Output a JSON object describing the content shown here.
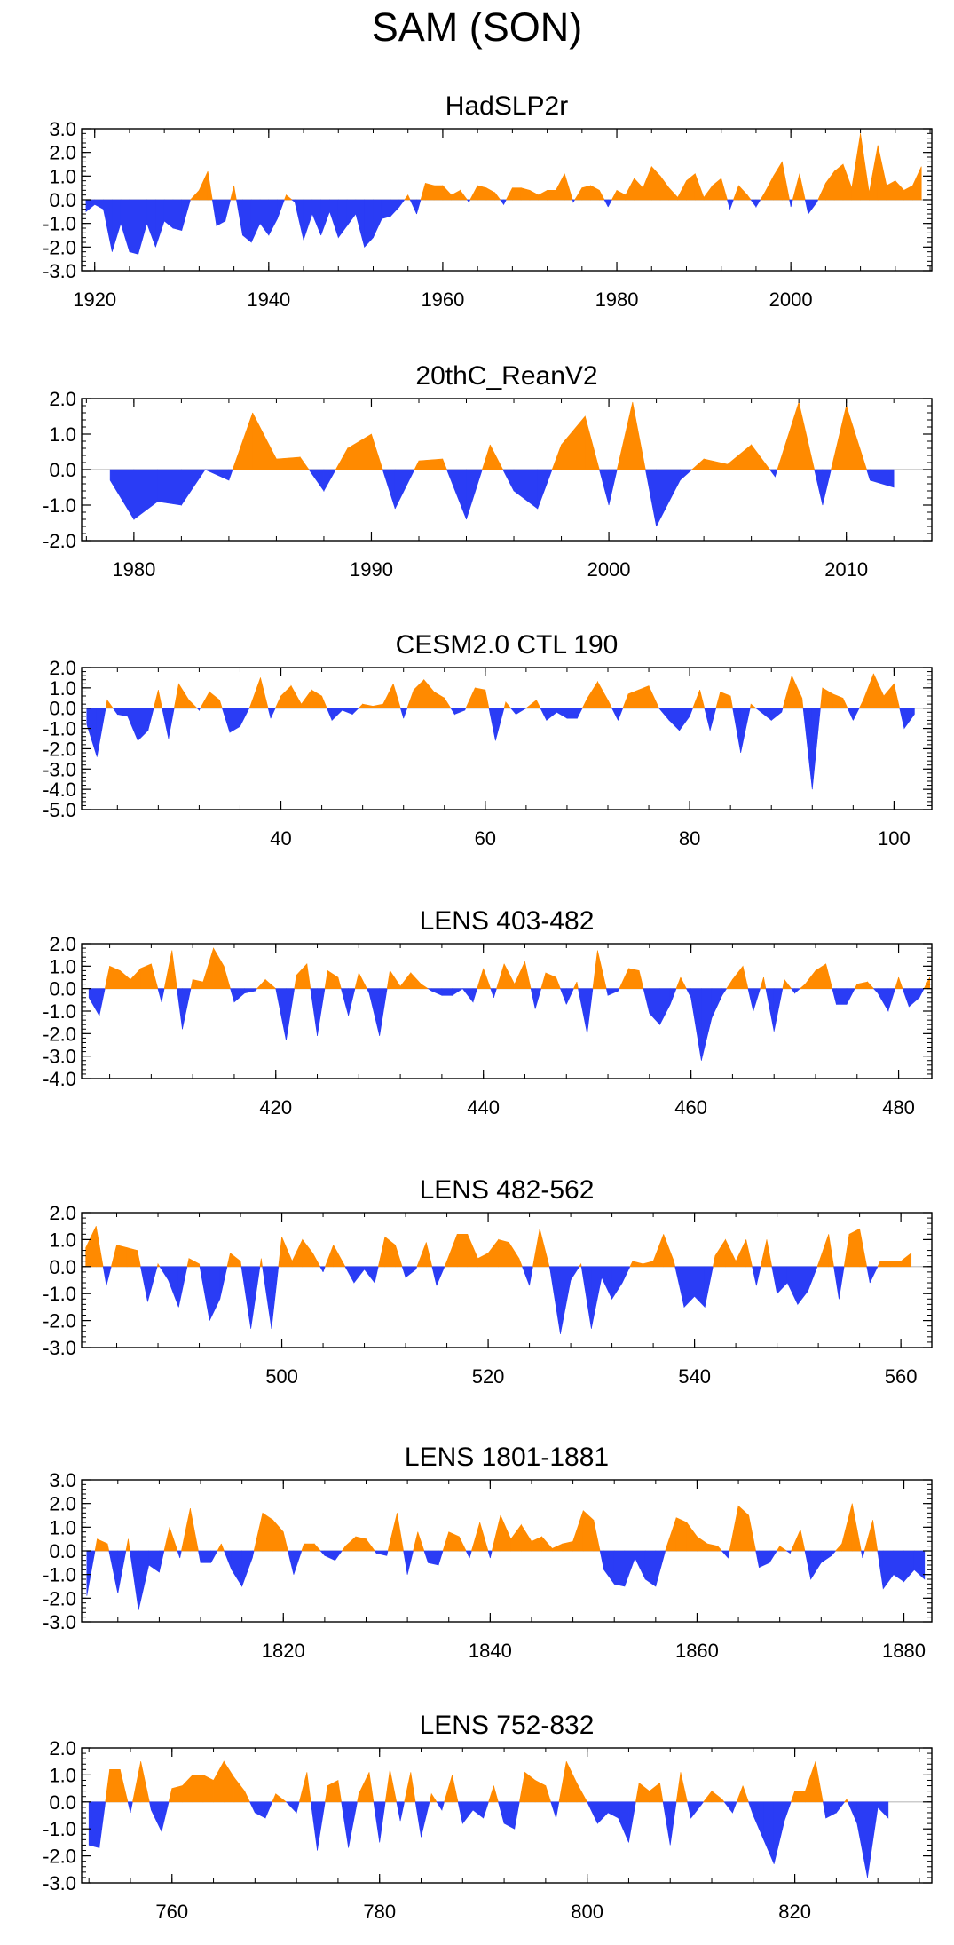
{
  "main_title": "SAM (SON)",
  "colors": {
    "positive": "#ff8a00",
    "negative": "#2a3cf5",
    "axis": "#000000",
    "zero_line": "#bbbbbb"
  },
  "chart_data": [
    {
      "type": "area",
      "title": "HadSLP2r",
      "xlim": [
        1918.5,
        2016.2
      ],
      "ylim": [
        -3.0,
        3.0
      ],
      "yticks": [
        3.0,
        2.0,
        1.0,
        0.0,
        -1.0,
        -2.0,
        -3.0
      ],
      "ytick_labels": [
        "3.0",
        "2.0",
        "1.0",
        "0.0",
        "-1.0",
        "-2.0",
        "-3.0"
      ],
      "xticks": [
        1920,
        1940,
        1960,
        1980,
        2000
      ],
      "xtick_labels": [
        "1920",
        "1940",
        "1960",
        "1980",
        "2000"
      ],
      "x_start": 1919,
      "values": [
        -0.5,
        -0.2,
        -0.4,
        -2.2,
        -1.0,
        -2.2,
        -2.3,
        -1.0,
        -2.0,
        -0.9,
        -1.2,
        -1.3,
        0.0,
        0.4,
        1.2,
        -1.1,
        -0.9,
        0.6,
        -1.5,
        -1.8,
        -1.0,
        -1.5,
        -0.8,
        0.2,
        -0.1,
        -1.7,
        -0.6,
        -1.5,
        -0.5,
        -1.6,
        -1.1,
        -0.6,
        -2.0,
        -1.6,
        -0.8,
        -0.7,
        -0.3,
        0.2,
        -0.6,
        0.7,
        0.6,
        0.6,
        0.2,
        0.4,
        -0.1,
        0.6,
        0.5,
        0.3,
        -0.2,
        0.5,
        0.5,
        0.4,
        0.2,
        0.4,
        0.4,
        1.1,
        -0.1,
        0.5,
        0.6,
        0.4,
        -0.3,
        0.4,
        0.2,
        0.9,
        0.5,
        1.4,
        1.0,
        0.5,
        0.1,
        0.8,
        1.1,
        0.1,
        0.6,
        0.9,
        -0.4,
        0.6,
        0.2,
        -0.3,
        0.3,
        1.0,
        1.6,
        -0.3,
        1.1,
        -0.6,
        -0.1,
        0.7,
        1.2,
        1.5,
        0.5,
        2.8,
        0.3,
        2.3,
        0.6,
        0.8,
        0.4,
        0.6,
        1.4
      ]
    },
    {
      "type": "area",
      "title": "20thC_ReanV2",
      "xlim": [
        1977.8,
        2013.6
      ],
      "ylim": [
        -2.0,
        2.0
      ],
      "yticks": [
        2.0,
        1.0,
        0.0,
        -1.0,
        -2.0
      ],
      "ytick_labels": [
        "2.0",
        "1.0",
        "0.0",
        "-1.0",
        "-2.0"
      ],
      "xticks": [
        1980,
        1990,
        2000,
        2010
      ],
      "xtick_labels": [
        "1980",
        "1990",
        "2000",
        "2010"
      ],
      "x_start": 1979,
      "values": [
        -0.3,
        -1.4,
        -0.9,
        -1.0,
        0.0,
        -0.3,
        1.6,
        0.3,
        0.35,
        -0.6,
        0.6,
        1.0,
        -1.1,
        0.25,
        0.3,
        -1.4,
        0.7,
        -0.6,
        -1.1,
        0.7,
        1.5,
        -1.0,
        1.9,
        -1.6,
        -0.3,
        0.3,
        0.15,
        0.7,
        -0.2,
        1.9,
        -1.0,
        1.8,
        -0.3,
        -0.5
      ]
    },
    {
      "type": "area",
      "title": "CESM2.0 CTL 190",
      "xlim": [
        20.5,
        103.7
      ],
      "ylim": [
        -5.0,
        2.0
      ],
      "yticks": [
        2.0,
        1.0,
        0.0,
        -1.0,
        -2.0,
        -3.0,
        -4.0,
        -5.0
      ],
      "ytick_labels": [
        "2.0",
        "1.0",
        "0.0",
        "-1.0",
        "-2.0",
        "-3.0",
        "-4.0",
        "-5.0"
      ],
      "xticks": [
        40,
        60,
        80,
        100
      ],
      "xtick_labels": [
        "40",
        "60",
        "80",
        "100"
      ],
      "x_start": 21,
      "values": [
        -0.8,
        -2.4,
        0.4,
        -0.3,
        -0.4,
        -1.6,
        -1.1,
        0.9,
        -1.5,
        1.2,
        0.4,
        -0.1,
        0.8,
        0.4,
        -1.2,
        -0.9,
        0.1,
        1.5,
        -0.5,
        0.6,
        1.1,
        0.2,
        0.9,
        0.6,
        -0.6,
        -0.1,
        -0.3,
        0.2,
        0.1,
        0.2,
        1.2,
        -0.5,
        0.9,
        1.4,
        0.8,
        0.5,
        -0.3,
        -0.1,
        1.0,
        0.9,
        -1.6,
        0.3,
        -0.3,
        0.0,
        0.4,
        -0.6,
        -0.2,
        -0.5,
        -0.5,
        0.5,
        1.3,
        0.4,
        -0.6,
        0.7,
        0.9,
        1.1,
        0.0,
        -0.6,
        -1.1,
        -0.4,
        0.9,
        -1.1,
        0.8,
        0.6,
        -2.2,
        0.2,
        -0.2,
        -0.6,
        -0.2,
        1.6,
        0.5,
        -4.0,
        1.0,
        0.7,
        0.5,
        -0.6,
        0.4,
        1.7,
        0.6,
        1.2,
        -1.0,
        -0.3
      ]
    },
    {
      "type": "area",
      "title": "LENS 403-482",
      "xlim": [
        401.3,
        483.2
      ],
      "ylim": [
        -4.0,
        2.0
      ],
      "yticks": [
        2.0,
        1.0,
        0.0,
        -1.0,
        -2.0,
        -3.0,
        -4.0
      ],
      "ytick_labels": [
        "2.0",
        "1.0",
        "0.0",
        "-1.0",
        "-2.0",
        "-3.0",
        "-4.0"
      ],
      "xticks": [
        420,
        440,
        460,
        480
      ],
      "xtick_labels": [
        "420",
        "440",
        "460",
        "480"
      ],
      "x_start": 402,
      "values": [
        -0.4,
        -1.2,
        1.0,
        0.8,
        0.4,
        0.9,
        1.1,
        -0.6,
        1.7,
        -1.8,
        0.4,
        0.3,
        1.8,
        1.0,
        -0.6,
        -0.2,
        -0.1,
        0.4,
        0.0,
        -2.3,
        0.6,
        1.1,
        -2.1,
        0.8,
        0.5,
        -1.2,
        0.7,
        -0.2,
        -2.1,
        0.8,
        0.1,
        0.7,
        0.2,
        -0.1,
        -0.3,
        -0.3,
        0.0,
        -0.6,
        0.9,
        -0.4,
        1.1,
        0.2,
        1.2,
        -0.9,
        0.7,
        0.5,
        -0.7,
        0.3,
        -2.0,
        1.7,
        -0.3,
        -0.1,
        0.9,
        0.8,
        -1.1,
        -1.6,
        -0.7,
        0.5,
        -0.4,
        -3.2,
        -1.3,
        -0.3,
        0.4,
        1.0,
        -1.0,
        0.5,
        -1.9,
        0.4,
        -0.2,
        0.2,
        0.8,
        1.1,
        -0.7,
        -0.7,
        0.2,
        0.3,
        -0.2,
        -1.0,
        0.5,
        -0.8,
        -0.4,
        0.5
      ]
    },
    {
      "type": "area",
      "title": "LENS 482-562",
      "xlim": [
        480.6,
        563.0
      ],
      "ylim": [
        -3.0,
        2.0
      ],
      "yticks": [
        2.0,
        1.0,
        0.0,
        -1.0,
        -2.0,
        -3.0
      ],
      "ytick_labels": [
        "2.0",
        "1.0",
        "0.0",
        "-1.0",
        "-2.0",
        "-3.0"
      ],
      "xticks": [
        500,
        520,
        540,
        560
      ],
      "xtick_labels": [
        "500",
        "520",
        "540",
        "560"
      ],
      "x_start": 481,
      "values": [
        0.7,
        1.5,
        -0.7,
        0.8,
        0.7,
        0.6,
        -1.3,
        0.1,
        -0.5,
        -1.5,
        0.3,
        0.1,
        -2.0,
        -1.2,
        0.5,
        0.2,
        -2.3,
        0.3,
        -2.3,
        1.1,
        0.2,
        1.0,
        0.5,
        -0.2,
        0.8,
        0.1,
        -0.6,
        -0.1,
        -0.6,
        1.1,
        0.8,
        -0.4,
        -0.1,
        0.9,
        -0.7,
        0.2,
        1.2,
        1.2,
        0.3,
        0.5,
        1.0,
        0.9,
        0.3,
        -0.7,
        1.4,
        -0.1,
        -2.5,
        -0.5,
        0.1,
        -2.3,
        -0.4,
        -1.2,
        -0.6,
        0.2,
        0.1,
        0.2,
        1.2,
        0.2,
        -1.5,
        -1.1,
        -1.5,
        0.4,
        1.0,
        0.2,
        1.0,
        -0.7,
        1.0,
        -1.0,
        -0.6,
        -1.4,
        -0.9,
        0.1,
        1.2,
        -1.2,
        1.2,
        1.4,
        -0.6,
        0.2,
        0.2,
        0.2,
        0.5
      ]
    },
    {
      "type": "area",
      "title": "LENS 1801-1881",
      "xlim": [
        1800.5,
        1882.7
      ],
      "ylim": [
        -3.0,
        3.0
      ],
      "yticks": [
        3.0,
        2.0,
        1.0,
        0.0,
        -1.0,
        -2.0,
        -3.0
      ],
      "ytick_labels": [
        "3.0",
        "2.0",
        "1.0",
        "0.0",
        "-1.0",
        "-2.0",
        "-3.0"
      ],
      "xticks": [
        1820,
        1840,
        1860,
        1880
      ],
      "xtick_labels": [
        "1820",
        "1840",
        "1860",
        "1880"
      ],
      "x_start": 1801,
      "values": [
        -1.9,
        0.5,
        0.3,
        -1.8,
        0.5,
        -2.5,
        -0.6,
        -0.9,
        1.0,
        -0.3,
        1.8,
        -0.5,
        -0.5,
        0.3,
        -0.8,
        -1.5,
        -0.3,
        1.6,
        1.3,
        0.8,
        -1.0,
        0.3,
        0.3,
        -0.2,
        -0.4,
        0.2,
        0.6,
        0.5,
        -0.1,
        -0.2,
        1.6,
        -1.0,
        0.8,
        -0.5,
        -0.6,
        0.8,
        0.6,
        -0.3,
        1.2,
        -0.3,
        1.5,
        0.5,
        1.1,
        0.4,
        0.6,
        0.1,
        0.3,
        0.4,
        1.7,
        1.3,
        -0.8,
        -1.4,
        -1.5,
        -0.3,
        -1.2,
        -1.5,
        0.1,
        1.4,
        1.2,
        0.6,
        0.3,
        0.2,
        -0.3,
        1.9,
        1.5,
        -0.7,
        -0.5,
        0.2,
        -0.1,
        0.9,
        -1.2,
        -0.5,
        -0.2,
        0.3,
        2.0,
        -0.3,
        1.3,
        -1.6,
        -1.0,
        -1.3,
        -0.8,
        -1.2
      ]
    },
    {
      "type": "area",
      "title": "LENS 752-832",
      "xlim": [
        751.3,
        833.2
      ],
      "ylim": [
        -3.0,
        2.0
      ],
      "yticks": [
        2.0,
        1.0,
        0.0,
        -1.0,
        -2.0,
        -3.0
      ],
      "ytick_labels": [
        "2.0",
        "1.0",
        "0.0",
        "-1.0",
        "-2.0",
        "-3.0"
      ],
      "xticks": [
        760,
        780,
        800,
        820
      ],
      "xtick_labels": [
        "760",
        "780",
        "800",
        "820"
      ],
      "x_start": 752,
      "values": [
        -1.6,
        -1.7,
        1.2,
        1.2,
        -0.4,
        1.5,
        -0.3,
        -1.1,
        0.5,
        0.6,
        1.0,
        1.0,
        0.8,
        1.5,
        0.9,
        0.4,
        -0.4,
        -0.6,
        0.3,
        0.0,
        -0.4,
        1.1,
        -1.8,
        0.6,
        0.8,
        -1.7,
        0.3,
        1.1,
        -1.5,
        1.2,
        -0.7,
        1.1,
        -1.3,
        0.3,
        -0.3,
        1.0,
        -0.8,
        -0.3,
        -0.6,
        0.6,
        -0.8,
        -1.0,
        1.1,
        0.8,
        0.6,
        -0.6,
        1.5,
        0.7,
        0.0,
        -0.8,
        -0.4,
        -0.6,
        -1.5,
        0.7,
        0.4,
        0.7,
        -1.6,
        1.1,
        -0.6,
        -0.1,
        0.4,
        0.1,
        -0.4,
        0.6,
        -0.5,
        -1.4,
        -2.3,
        -0.7,
        0.4,
        0.4,
        1.5,
        -0.6,
        -0.4,
        0.1,
        -0.8,
        -2.8,
        -0.2,
        -0.6
      ]
    }
  ]
}
